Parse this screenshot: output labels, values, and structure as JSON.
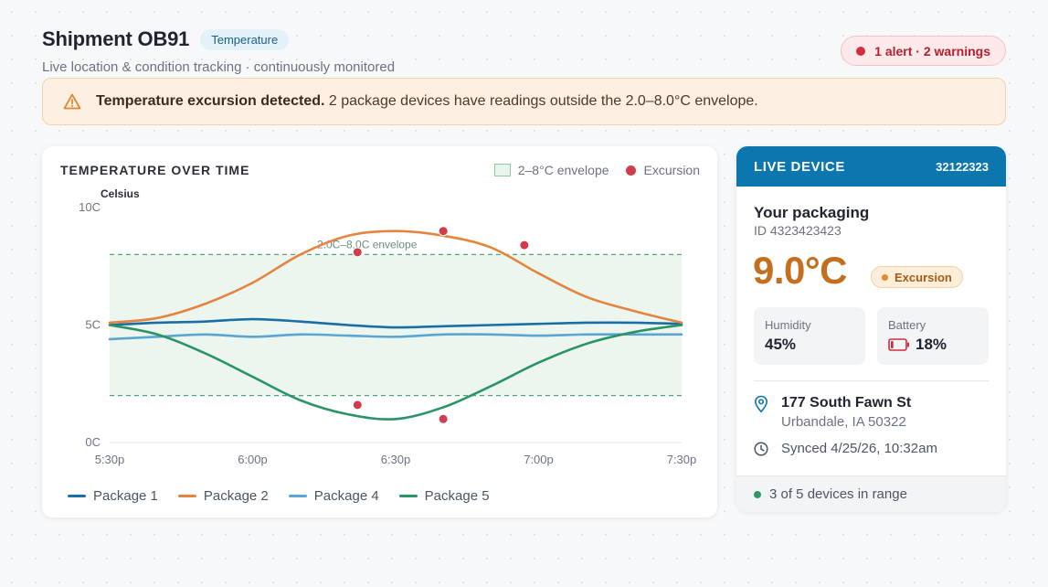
{
  "header": {
    "title": "Shipment OB91",
    "tag": "Temperature",
    "subtitle": "Live location & condition tracking · continuously monitored",
    "alert_summary": "1 alert · 2 warnings"
  },
  "banner": {
    "icon": "warning-triangle-icon",
    "bold": "Temperature excursion detected.",
    "text": " 2 package devices have readings outside the 2.0–8.0°C envelope."
  },
  "chart": {
    "title": "TEMPERATURE OVER TIME",
    "legend_envelope": "2–8°C envelope",
    "legend_excursion": "Excursion"
  },
  "chart_data": {
    "type": "line",
    "ylabel": "Celsius",
    "ylim": [
      0,
      10
    ],
    "yticks": [
      "10C",
      "5C",
      "0C"
    ],
    "xticks": [
      "5:30p",
      "6:00p",
      "6:30p",
      "7:00p",
      "7:30p"
    ],
    "x": [
      0,
      10,
      20,
      30,
      40,
      50,
      60,
      70,
      80,
      90,
      100,
      110,
      120
    ],
    "envelope": {
      "low": 2.0,
      "high": 8.0,
      "label": "2.0C–8.0C envelope"
    },
    "series": [
      {
        "name": "Package 1",
        "color": "#1a6ea6",
        "values": [
          5.0,
          5.1,
          5.15,
          5.25,
          5.15,
          5.0,
          4.9,
          4.95,
          5.0,
          5.05,
          5.1,
          5.1,
          5.05
        ]
      },
      {
        "name": "Package 2",
        "color": "#e4853f",
        "values": [
          5.1,
          5.3,
          5.9,
          6.8,
          8.0,
          8.8,
          9.0,
          8.8,
          8.3,
          7.2,
          6.2,
          5.6,
          5.1
        ]
      },
      {
        "name": "Package 4",
        "color": "#5aa5d3",
        "values": [
          4.4,
          4.5,
          4.6,
          4.5,
          4.6,
          4.55,
          4.5,
          4.6,
          4.6,
          4.55,
          4.6,
          4.6,
          4.6
        ]
      },
      {
        "name": "Package 5",
        "color": "#2b9464",
        "values": [
          5.0,
          4.6,
          3.8,
          2.8,
          1.8,
          1.2,
          1.0,
          1.5,
          2.4,
          3.4,
          4.2,
          4.7,
          5.0
        ]
      }
    ],
    "excursions": [
      {
        "x": 52,
        "y": 8.1
      },
      {
        "x": 70,
        "y": 9.0
      },
      {
        "x": 87,
        "y": 8.4
      },
      {
        "x": 52,
        "y": 1.6
      },
      {
        "x": 70,
        "y": 1.0
      }
    ]
  },
  "device": {
    "header": "LIVE DEVICE",
    "device_id": "32122323",
    "name": "Your packaging",
    "package_id": "ID 4323423423",
    "temperature": "9.0°C",
    "status": "Excursion",
    "humidity_label": "Humidity",
    "humidity_value": "45%",
    "battery_label": "Battery",
    "battery_value": "18%",
    "battery_level": 0.18,
    "address_line1": "177 South Fawn St",
    "address_line2": "Urbandale, IA 50322",
    "synced": "Synced 4/25/26, 10:32am",
    "footer": "3 of 5 devices in range"
  }
}
